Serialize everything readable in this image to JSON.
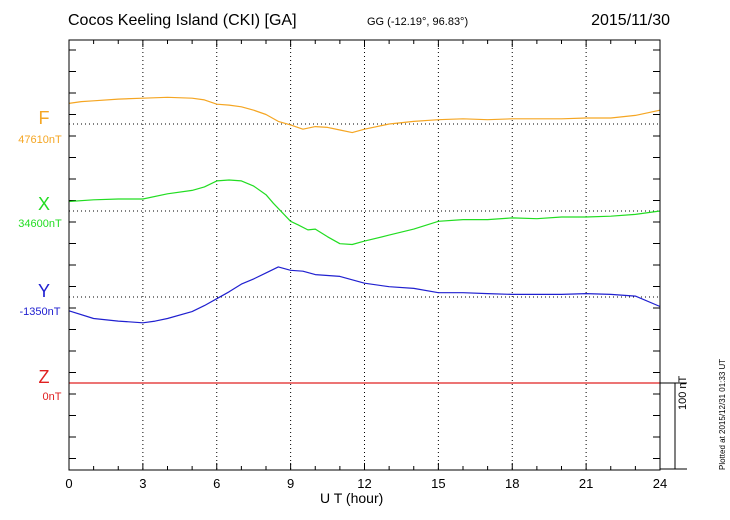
{
  "header": {
    "title": "Cocos Keeling Island (CKI)  [GA]",
    "coords": "GG (-12.19°,  96.83°)",
    "date": "2015/11/30"
  },
  "footer": {
    "plotted": "Plotted at 2015/12/31 01:33 UT"
  },
  "chart_data": {
    "type": "line",
    "xlabel": "U T (hour)",
    "xlim": [
      0,
      24
    ],
    "xticks": [
      0,
      3,
      6,
      9,
      12,
      15,
      18,
      21,
      24
    ],
    "units_per_division": 50,
    "scale_bar": "100 nT",
    "components": [
      {
        "letter": "F",
        "baseline": "47610nT",
        "color": "#f5a623"
      },
      {
        "letter": "X",
        "baseline": "34600nT",
        "color": "#22dd22"
      },
      {
        "letter": "Y",
        "baseline": "-1350nT",
        "color": "#2020d0"
      },
      {
        "letter": "Z",
        "baseline": "0nT",
        "color": "#e02020"
      }
    ],
    "series": [
      {
        "name": "F",
        "color": "#f5a623",
        "baseline_nT": 47610,
        "x": [
          0,
          0.5,
          1,
          2,
          3,
          4,
          5,
          5.5,
          6,
          6.5,
          7,
          7.5,
          8,
          8.5,
          9,
          9.5,
          10,
          10.5,
          11,
          11.5,
          12,
          13,
          14,
          15,
          16,
          17,
          18,
          19,
          20,
          21,
          22,
          23,
          24
        ],
        "y": [
          47634,
          47636,
          47637,
          47639,
          47640,
          47641,
          47640,
          47638,
          47633,
          47632,
          47630,
          47626,
          47621,
          47613,
          47609,
          47604,
          47607,
          47606,
          47603,
          47600,
          47604,
          47610,
          47613,
          47615,
          47616,
          47615,
          47616,
          47616,
          47616,
          47617,
          47617,
          47620,
          47626
        ]
      },
      {
        "name": "X",
        "color": "#22dd22",
        "baseline_nT": 34600,
        "x": [
          0,
          1,
          2,
          3,
          4,
          5,
          5.5,
          6,
          6.5,
          7,
          7.5,
          8,
          8.3,
          8.7,
          9,
          9.3,
          9.7,
          10,
          10.5,
          11,
          11.5,
          12,
          13,
          14,
          15,
          16,
          17,
          18,
          19,
          20,
          21,
          22,
          23,
          24
        ],
        "y": [
          34611,
          34613,
          34614,
          34614,
          34620,
          34624,
          34628,
          34635,
          34636,
          34635,
          34629,
          34619,
          34609,
          34597,
          34588,
          34584,
          34578,
          34579,
          34570,
          34562,
          34561,
          34565,
          34572,
          34579,
          34588,
          34590,
          34590,
          34592,
          34591,
          34593,
          34593,
          34594,
          34596,
          34600
        ]
      },
      {
        "name": "Y",
        "color": "#2020d0",
        "baseline_nT": -1350,
        "x": [
          0,
          1,
          2,
          3,
          3.5,
          4,
          5,
          5.5,
          6,
          6.5,
          7,
          7.5,
          8,
          8.5,
          9,
          9.5,
          10,
          11,
          12,
          13,
          14,
          15,
          16,
          17,
          18,
          19,
          20,
          21,
          22,
          23,
          24
        ],
        "y": [
          -1366,
          -1375,
          -1378,
          -1380,
          -1378,
          -1375,
          -1367,
          -1360,
          -1352,
          -1344,
          -1335,
          -1329,
          -1322,
          -1315,
          -1319,
          -1320,
          -1324,
          -1326,
          -1334,
          -1338,
          -1340,
          -1345,
          -1345,
          -1346,
          -1347,
          -1347,
          -1347,
          -1346,
          -1347,
          -1349,
          -1361
        ]
      },
      {
        "name": "Z",
        "color": "#e02020",
        "baseline_nT": 0,
        "x": [
          0,
          24
        ],
        "y": [
          0,
          0
        ]
      }
    ]
  }
}
